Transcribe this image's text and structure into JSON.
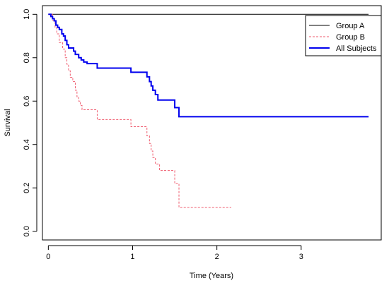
{
  "chart_data": {
    "type": "line",
    "title": "",
    "xlabel": "Time (Years)",
    "ylabel": "Survival",
    "xlim": [
      -0.07,
      3.95
    ],
    "ylim": [
      -0.04,
      1.04
    ],
    "x_ticks": [
      0,
      1,
      2,
      3
    ],
    "y_ticks": [
      0.0,
      0.2,
      0.4,
      0.6,
      0.8,
      1.0
    ],
    "y_tick_labels": [
      "0.0",
      "0.2",
      "0.4",
      "0.6",
      "0.8",
      "1.0"
    ],
    "grid": false,
    "legend_position": "top-right",
    "series": [
      {
        "name": "Group A",
        "color": "#000000",
        "style": "solid",
        "step": true,
        "points": [
          [
            0,
            1.0
          ],
          [
            3.8,
            1.0
          ]
        ]
      },
      {
        "name": "Group B",
        "color": "#ef5b6e",
        "style": "dashed",
        "step": true,
        "points": [
          [
            0,
            1.0
          ],
          [
            0.05,
            0.97
          ],
          [
            0.08,
            0.94
          ],
          [
            0.1,
            0.91
          ],
          [
            0.13,
            0.87
          ],
          [
            0.17,
            0.84
          ],
          [
            0.2,
            0.8
          ],
          [
            0.22,
            0.77
          ],
          [
            0.24,
            0.74
          ],
          [
            0.26,
            0.71
          ],
          [
            0.29,
            0.69
          ],
          [
            0.32,
            0.65
          ],
          [
            0.34,
            0.62
          ],
          [
            0.36,
            0.6
          ],
          [
            0.38,
            0.58
          ],
          [
            0.4,
            0.56
          ],
          [
            0.58,
            0.515
          ],
          [
            0.98,
            0.482
          ],
          [
            1.17,
            0.44
          ],
          [
            1.2,
            0.405
          ],
          [
            1.22,
            0.37
          ],
          [
            1.24,
            0.34
          ],
          [
            1.27,
            0.31
          ],
          [
            1.32,
            0.28
          ],
          [
            1.5,
            0.22
          ],
          [
            1.55,
            0.11
          ],
          [
            2.17,
            0.11
          ]
        ]
      },
      {
        "name": "All Subjects",
        "color": "#0000ee",
        "style": "solid",
        "step": true,
        "points": [
          [
            0,
            1.0
          ],
          [
            0.03,
            0.99
          ],
          [
            0.05,
            0.98
          ],
          [
            0.07,
            0.97
          ],
          [
            0.09,
            0.95
          ],
          [
            0.11,
            0.94
          ],
          [
            0.13,
            0.93
          ],
          [
            0.16,
            0.91
          ],
          [
            0.18,
            0.9
          ],
          [
            0.2,
            0.88
          ],
          [
            0.22,
            0.86
          ],
          [
            0.24,
            0.845
          ],
          [
            0.3,
            0.83
          ],
          [
            0.32,
            0.815
          ],
          [
            0.36,
            0.8
          ],
          [
            0.39,
            0.79
          ],
          [
            0.42,
            0.78
          ],
          [
            0.46,
            0.773
          ],
          [
            0.58,
            0.752
          ],
          [
            0.98,
            0.733
          ],
          [
            1.17,
            0.712
          ],
          [
            1.2,
            0.69
          ],
          [
            1.22,
            0.67
          ],
          [
            1.24,
            0.65
          ],
          [
            1.27,
            0.63
          ],
          [
            1.3,
            0.605
          ],
          [
            1.5,
            0.57
          ],
          [
            1.55,
            0.528
          ],
          [
            3.8,
            0.528
          ]
        ]
      }
    ]
  }
}
